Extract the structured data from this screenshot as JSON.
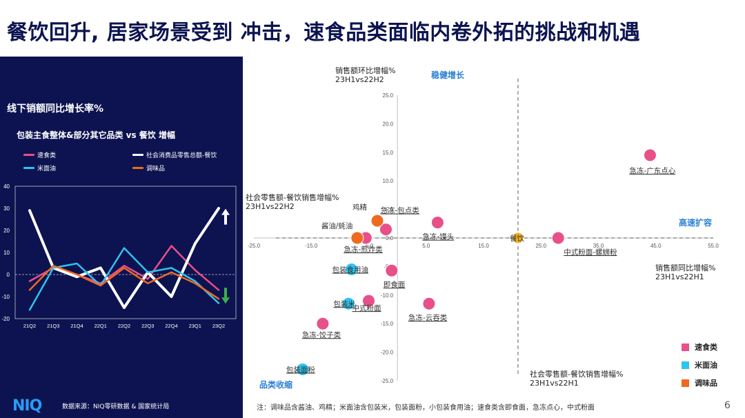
{
  "header": {
    "title": "餐饮回升, 居家场景受到 冲击，速食品类面临内卷外拓的挑战和机遇"
  },
  "left_panel": {
    "title": "线下销额同比增长率%",
    "subtitle": "包装主食整体&部分其它品类 vs 餐饮 增幅",
    "legend": [
      {
        "name": "速食类",
        "color": "#e8508a"
      },
      {
        "name": "社会消费品零售总额-餐饮",
        "color": "#ffffff"
      },
      {
        "name": "米面油",
        "color": "#2ec4ef"
      },
      {
        "name": "调味品",
        "color": "#ef6a20"
      }
    ],
    "logo": "NIQ",
    "source": "数据来源：NIQ零研数据 & 国家统计局"
  },
  "chart_data": [
    {
      "type": "line",
      "categories": [
        "21Q2",
        "21Q3",
        "21Q4",
        "22Q1",
        "22Q2",
        "22Q3",
        "22Q4",
        "23Q1",
        "23Q2"
      ],
      "ylim": [
        -20,
        40
      ],
      "yticks": [
        "40",
        "30",
        "20",
        "10",
        "0",
        "-10",
        "-20"
      ],
      "series": [
        {
          "name": "速食类",
          "color": "#e8508a",
          "values": [
            -3,
            3,
            0,
            -4,
            4,
            -2,
            13,
            2,
            -7
          ]
        },
        {
          "name": "社会消费品零售总额-餐饮",
          "color": "#ffffff",
          "values": [
            29,
            3,
            -1,
            3,
            -15,
            1,
            -10,
            14,
            30
          ]
        },
        {
          "name": "米面油",
          "color": "#2ec4ef",
          "values": [
            -16,
            3,
            5,
            -5,
            12,
            1,
            3,
            -3,
            -13
          ]
        },
        {
          "name": "调味品",
          "color": "#ef6a20",
          "values": [
            -7,
            4,
            0,
            -5,
            3,
            -4,
            1,
            -4,
            -11
          ]
        }
      ],
      "annotations": {
        "up_arrow_color": "#ffffff",
        "down_arrow_color": "#3cb14a"
      }
    },
    {
      "type": "scatter",
      "xlabel": "销售额同比增幅% 23H1vs22H1",
      "ylabel": "销售额环比增幅% 23H1vs22H2",
      "xlim": [
        -25,
        55
      ],
      "ylim": [
        -25,
        25
      ],
      "xticks": [
        "-25.0",
        "-15.0",
        "-5.0",
        "5.0",
        "15.0",
        "25.0",
        "35.0",
        "45.0",
        "55.0"
      ],
      "yticks": [
        "25.0",
        "20.0",
        "15.0",
        "10.0",
        "5.0",
        "0.0",
        "-5.0",
        "-10.0",
        "-15.0",
        "-20.0",
        "-25.0"
      ],
      "ref_x": 21,
      "ref_y": 0,
      "series": [
        {
          "name": "速食类",
          "color": "#e8508a",
          "points": [
            {
              "label": "急冻-广东点心",
              "x": 44,
              "y": 14.5
            },
            {
              "label": "中式粉面-螺蛳粉",
              "x": 28,
              "y": 0
            },
            {
              "label": "急冻-馒头",
              "x": 7,
              "y": 2.7
            },
            {
              "label": "急冻-包点类",
              "x": -2,
              "y": 1.5
            },
            {
              "label": "急冻-煎炸类",
              "x": -5.5,
              "y": 0
            },
            {
              "label": "即食面",
              "x": -1,
              "y": -5.7
            },
            {
              "label": "中式粉面",
              "x": -5,
              "y": -11
            },
            {
              "label": "急冻-云吞类",
              "x": 5.5,
              "y": -11.5
            },
            {
              "label": "急冻-饺子类",
              "x": -13,
              "y": -15
            }
          ]
        },
        {
          "name": "米面油",
          "color": "#2ec4ef",
          "points": [
            {
              "label": "包装食用油",
              "x": -8,
              "y": -5.5
            },
            {
              "label": "包装米",
              "x": -8.5,
              "y": -11.5
            },
            {
              "label": "包装面粉",
              "x": -16.5,
              "y": -23
            }
          ]
        },
        {
          "name": "调味品",
          "color": "#ef6a20",
          "points": [
            {
              "label": "鸡精",
              "x": -3.5,
              "y": 3
            },
            {
              "label": "酱油/蚝油",
              "x": -7,
              "y": 0
            }
          ]
        },
        {
          "name": "餐饮",
          "color": "#f2b320",
          "points": [
            {
              "label": "餐饮",
              "x": 21,
              "y": 0
            }
          ]
        }
      ]
    }
  ],
  "right_panel": {
    "quadrant_top": "稳健增长",
    "quadrant_right": "高速扩容",
    "quadrant_bottom_left": "品类收缩",
    "y_axis_note_line1": "销售额环比增幅%",
    "y_axis_note_line2": "23H1vs22H2",
    "ref_y_note_line1": "社会零售额-餐饮销售增幅%",
    "ref_y_note_line2": "23H1vs22H2",
    "x_axis_note_line1": "销售额同比增幅%",
    "x_axis_note_line2": "23H1vs22H1",
    "ref_x_note_line1": "社会零售额-餐饮销售增幅%",
    "ref_x_note_line2": "23H1vs22H1",
    "legend": [
      {
        "name": "速食类",
        "color": "#e8508a"
      },
      {
        "name": "米面油",
        "color": "#2ec4ef"
      },
      {
        "name": "调味品",
        "color": "#ef6a20"
      }
    ],
    "footnote": "注：调味品含酱油、鸡精；米面油含包装米，包装面粉，小包装食用油；速食类含即食面，急冻点心，中式粉面",
    "page_number": "6"
  }
}
